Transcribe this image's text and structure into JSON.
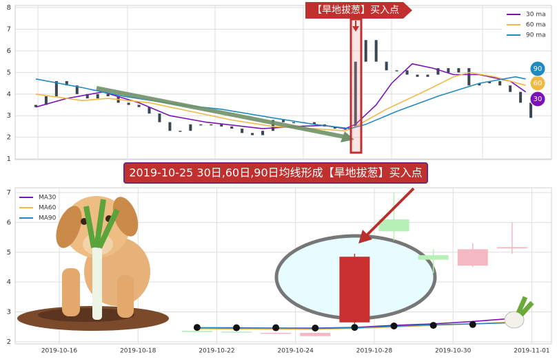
{
  "chart_data": [
    {
      "type": "candlestick",
      "signal_label": "【旱地拔葱】买入点",
      "ylim": [
        0.97,
        8.1
      ],
      "yticks": [
        1,
        2,
        3,
        4,
        5,
        6,
        7,
        8
      ],
      "xlim": [
        -2,
        50
      ],
      "grid": true,
      "legend": "upper right",
      "color": "#3a4652",
      "open": [
        3.4,
        3.5,
        3.9,
        4.6,
        4.4,
        4.0,
        3.8,
        4.0,
        3.9,
        3.6,
        3.5,
        3.4,
        3.1,
        2.7,
        2.3,
        2.3,
        2.6,
        2.6,
        2.6,
        2.5,
        2.4,
        2.2,
        2.1,
        2.3,
        2.8,
        2.7,
        2.7,
        2.7,
        2.6,
        2.5,
        2.4,
        2.5,
        5.5,
        6.5,
        5.5,
        5.1,
        5.1,
        4.9,
        4.8,
        4.9,
        5.2,
        5.0,
        5.2,
        4.4,
        4.5,
        4.6,
        4.4,
        4.1,
        3.6
      ],
      "close": [
        3.5,
        3.9,
        4.6,
        4.4,
        4.0,
        3.8,
        4.0,
        3.9,
        3.6,
        3.5,
        3.4,
        3.1,
        2.7,
        2.3,
        2.3,
        2.6,
        2.6,
        2.6,
        2.5,
        2.4,
        2.2,
        2.1,
        2.3,
        2.8,
        2.7,
        2.7,
        2.7,
        2.6,
        2.5,
        2.4,
        2.4,
        5.5,
        6.5,
        5.5,
        5.1,
        5.1,
        4.9,
        4.8,
        4.9,
        5.2,
        5.0,
        5.2,
        4.4,
        4.5,
        4.6,
        4.4,
        4.1,
        3.6,
        2.9
      ],
      "series": [
        {
          "name": "30 ma",
          "badge": "30",
          "color": "#7b12b8",
          "x": [
            0,
            3,
            6.5,
            10,
            13,
            16.5,
            22,
            25,
            28,
            30,
            31,
            33,
            34.5,
            36.5,
            38.5,
            40.5,
            43,
            46,
            47.5
          ],
          "values": [
            3.4,
            3.8,
            4.1,
            3.6,
            3.0,
            2.7,
            2.4,
            2.5,
            2.55,
            2.4,
            2.6,
            3.5,
            4.5,
            5.4,
            5.2,
            4.9,
            4.9,
            4.6,
            4.1
          ]
        },
        {
          "name": "60 ma",
          "badge": "60",
          "color": "#f0b845",
          "x": [
            0,
            4.5,
            7,
            11,
            15,
            19,
            23,
            27,
            30,
            31,
            34,
            38,
            40.5,
            42,
            44.5,
            47.5
          ],
          "values": [
            4.0,
            3.7,
            3.8,
            3.6,
            3.2,
            2.8,
            2.5,
            2.4,
            2.3,
            2.5,
            3.3,
            4.2,
            4.8,
            5.0,
            4.8,
            4.4
          ]
        },
        {
          "name": "90 ma",
          "badge": "90",
          "color": "#1f8ac0",
          "x": [
            0,
            4.5,
            8.5,
            14,
            18,
            23,
            27,
            30.5,
            32,
            35,
            39,
            43,
            46.5,
            47.5
          ],
          "values": [
            4.7,
            4.3,
            3.9,
            3.5,
            3.3,
            2.9,
            2.6,
            2.4,
            2.6,
            3.2,
            3.9,
            4.5,
            4.8,
            4.7
          ]
        }
      ]
    },
    {
      "type": "candlestick",
      "banner": "2019-10-25 30日,60日,90日均线形成【旱地拔葱】买入点",
      "ylim": [
        1.93,
        7.16
      ],
      "yticks": [
        2,
        3,
        4,
        5,
        6,
        7
      ],
      "xlim": [
        -1.12,
        12.5
      ],
      "xticks": [
        {
          "value": 0,
          "label": "2019-10-16"
        },
        {
          "value": 2,
          "label": "2019-10-18"
        },
        {
          "value": 4,
          "label": "2019-10-22"
        },
        {
          "value": 6,
          "label": "2019-10-24"
        },
        {
          "value": 8,
          "label": "2019-10-28"
        },
        {
          "value": 10,
          "label": "2019-10-30"
        },
        {
          "value": 12,
          "label": "2019-11-01"
        }
      ],
      "grid": true,
      "legend": "upper left",
      "x": [
        3.5,
        4.5,
        5.5,
        6.5,
        7.5,
        8.5,
        9.5,
        10.5,
        11.5
      ],
      "open": [
        2.37,
        2.34,
        2.27,
        2.19,
        2.65,
        6.1,
        4.9,
        4.55,
        5.13
      ],
      "close": [
        2.33,
        2.32,
        2.3,
        2.3,
        4.85,
        5.7,
        4.75,
        5.1,
        5.17
      ],
      "high": [
        2.38,
        2.35,
        2.31,
        2.31,
        4.95,
        7.0,
        5.1,
        5.3,
        6.0
      ],
      "low": [
        2.32,
        2.31,
        2.26,
        2.18,
        2.6,
        5.4,
        4.3,
        4.5,
        4.95
      ],
      "colors": [
        "#b6f0b6",
        "#b6f0b6",
        "#f4b8c2",
        "#f4b8c2",
        "#c8302f",
        "#b6f0b6",
        "#b6f0b6",
        "#f4b8c2",
        "#f4b8c2"
      ],
      "markers": {
        "color": "#111111",
        "values": [
          2.48,
          2.47,
          2.47,
          2.46,
          2.48,
          2.53,
          2.55,
          2.58
        ]
      },
      "series": [
        {
          "name": "MA30",
          "color": "#7b12b8",
          "values": [
            2.47,
            2.47,
            2.46,
            2.46,
            2.48,
            2.55,
            2.6,
            2.68,
            2.78
          ]
        },
        {
          "name": "MA60",
          "color": "#f0b845",
          "values": [
            2.44,
            2.43,
            2.42,
            2.42,
            2.45,
            2.5,
            2.55,
            2.6,
            2.66
          ]
        },
        {
          "name": "MA90",
          "color": "#1f8ac0",
          "values": [
            2.47,
            2.46,
            2.46,
            2.45,
            2.47,
            2.52,
            2.57,
            2.6,
            2.64
          ]
        }
      ]
    }
  ]
}
